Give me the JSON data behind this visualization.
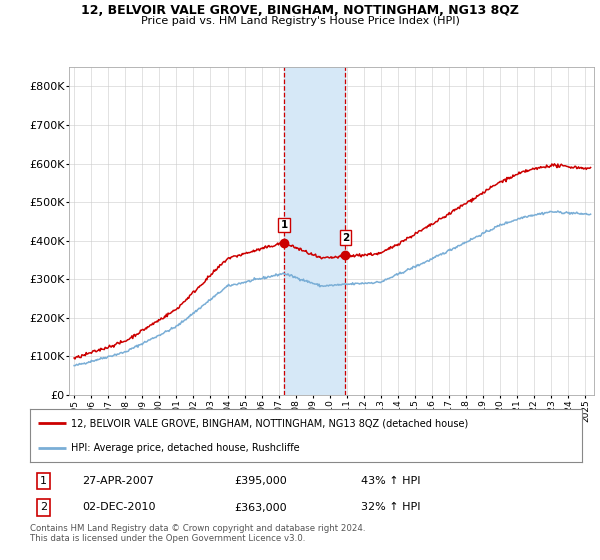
{
  "title": "12, BELVOIR VALE GROVE, BINGHAM, NOTTINGHAM, NG13 8QZ",
  "subtitle": "Price paid vs. HM Land Registry's House Price Index (HPI)",
  "ylim": [
    0,
    850000
  ],
  "yticks": [
    0,
    100000,
    200000,
    300000,
    400000,
    500000,
    600000,
    700000,
    800000
  ],
  "ytick_labels": [
    "£0",
    "£100K",
    "£200K",
    "£300K",
    "£400K",
    "£500K",
    "£600K",
    "£700K",
    "£800K"
  ],
  "sale1_date": 2007.32,
  "sale1_price": 395000,
  "sale2_date": 2010.92,
  "sale2_price": 363000,
  "line_color_red": "#cc0000",
  "line_color_blue": "#7aaed6",
  "shade_color": "#d6e8f7",
  "dashed_color": "#cc0000",
  "legend_label_red": "12, BELVOIR VALE GROVE, BINGHAM, NOTTINGHAM, NG13 8QZ (detached house)",
  "legend_label_blue": "HPI: Average price, detached house, Rushcliffe",
  "table_row1": [
    "1",
    "27-APR-2007",
    "£395,000",
    "43% ↑ HPI"
  ],
  "table_row2": [
    "2",
    "02-DEC-2010",
    "£363,000",
    "32% ↑ HPI"
  ],
  "footer": "Contains HM Land Registry data © Crown copyright and database right 2024.\nThis data is licensed under the Open Government Licence v3.0.",
  "xlim_start": 1994.7,
  "xlim_end": 2025.5,
  "xtick_years": [
    1995,
    1996,
    1997,
    1998,
    1999,
    2000,
    2001,
    2002,
    2003,
    2004,
    2005,
    2006,
    2007,
    2008,
    2009,
    2010,
    2011,
    2012,
    2013,
    2014,
    2015,
    2016,
    2017,
    2018,
    2019,
    2020,
    2021,
    2022,
    2023,
    2024,
    2025
  ]
}
